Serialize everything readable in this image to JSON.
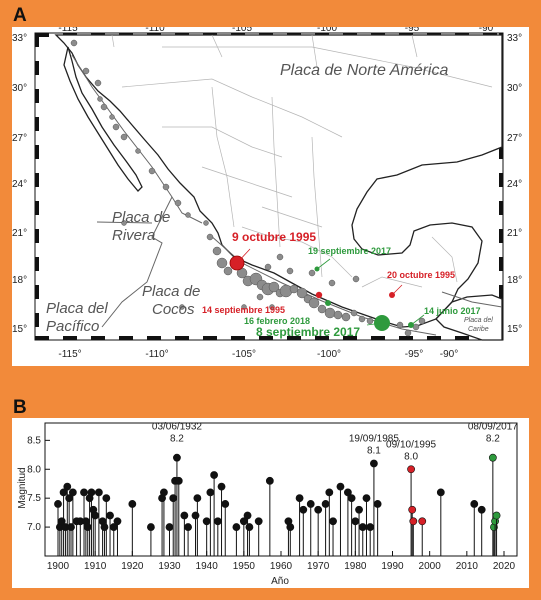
{
  "panel_a": {
    "letter": "A",
    "lon_ticks": [
      "-115°",
      "-110°",
      "-105°",
      "-100°",
      "-95°",
      "-90°"
    ],
    "lat_ticks": [
      "33°",
      "30°",
      "27°",
      "24°",
      "21°",
      "18°",
      "15°"
    ],
    "plates": {
      "north_america": "Placa de Norte América",
      "rivera_1": "Placa de",
      "rivera_2": "Rivera",
      "cocos_1": "Placa de",
      "cocos_2": "Cocos",
      "pacific_1": "Placa del",
      "pacific_2": "Pacífico",
      "caribbean_1": "Placa del",
      "caribbean_2": "Caribe"
    },
    "events": {
      "e1": "9 octubre 1995",
      "e2": "19 septiembre 2017",
      "e3": "20 octubre 1995",
      "e4": "14 septiembre 1995",
      "e5": "16 febrero 2018",
      "e6": "8 septiembre 2017",
      "e7": "14 junio 2017"
    },
    "colors": {
      "red": "#d62027",
      "green": "#2e9a3d",
      "grey": "#8c8c8c"
    }
  },
  "panel_b": {
    "letter": "B",
    "chart_data": {
      "type": "stem",
      "xlabel": "Año",
      "ylabel": "Magnitud",
      "xlim": [
        1900,
        2020
      ],
      "ylim": [
        6.5,
        8.8
      ],
      "xticks": [
        "1900",
        "1910",
        "1920",
        "1930",
        "1940",
        "1950",
        "1960",
        "1970",
        "1980",
        "1990",
        "2000",
        "2010",
        "2020"
      ],
      "yticks": [
        "7.0",
        "7.5",
        "8.0",
        "8.5"
      ],
      "annotations": [
        {
          "date": "03/06/1932",
          "mag_label": "8.2",
          "x": 1932,
          "y": 8.2
        },
        {
          "date": "19/09/1985",
          "mag_label": "8.1",
          "x": 1985,
          "y": 8.1
        },
        {
          "date": "09/10/1995",
          "mag_label": "8.0",
          "x": 1995,
          "y": 8.0
        },
        {
          "date": "08/09/2017",
          "mag_label": "8.2",
          "x": 2017,
          "y": 8.2
        }
      ],
      "series": [
        {
          "color": "black",
          "points": [
            [
              1900,
              7.4
            ],
            [
              1900.5,
              7.0
            ],
            [
              1901,
              7.1
            ],
            [
              1901.5,
              7.6
            ],
            [
              1902,
              7.0
            ],
            [
              1902.5,
              7.7
            ],
            [
              1903,
              7.5
            ],
            [
              1903.5,
              7.0
            ],
            [
              1904,
              7.6
            ],
            [
              1905,
              7.1
            ],
            [
              1906,
              7.1
            ],
            [
              1907,
              7.6
            ],
            [
              1907.5,
              7.1
            ],
            [
              1908,
              7.0
            ],
            [
              1908.5,
              7.5
            ],
            [
              1909,
              7.6
            ],
            [
              1909.5,
              7.3
            ],
            [
              1910,
              7.2
            ],
            [
              1911,
              7.6
            ],
            [
              1912,
              7.1
            ],
            [
              1912.5,
              7.0
            ],
            [
              1913,
              7.5
            ],
            [
              1914,
              7.2
            ],
            [
              1915,
              7.0
            ],
            [
              1916,
              7.1
            ],
            [
              1920,
              7.4
            ],
            [
              1925,
              7.0
            ],
            [
              1928,
              7.5
            ],
            [
              1928.5,
              7.6
            ],
            [
              1930,
              7.0
            ],
            [
              1931,
              7.5
            ],
            [
              1931.5,
              7.8
            ],
            [
              1932,
              8.2
            ],
            [
              1932.5,
              7.8
            ],
            [
              1934,
              7.2
            ],
            [
              1935,
              7.0
            ],
            [
              1937,
              7.2
            ],
            [
              1937.5,
              7.5
            ],
            [
              1940,
              7.1
            ],
            [
              1941,
              7.6
            ],
            [
              1942,
              7.9
            ],
            [
              1943,
              7.1
            ],
            [
              1944,
              7.7
            ],
            [
              1945,
              7.4
            ],
            [
              1948,
              7.0
            ],
            [
              1950,
              7.1
            ],
            [
              1951,
              7.2
            ],
            [
              1951.5,
              7.0
            ],
            [
              1954,
              7.1
            ],
            [
              1957,
              7.8
            ],
            [
              1962,
              7.1
            ],
            [
              1962.5,
              7.0
            ],
            [
              1965,
              7.5
            ],
            [
              1966,
              7.3
            ],
            [
              1968,
              7.4
            ],
            [
              1970,
              7.3
            ],
            [
              1972,
              7.4
            ],
            [
              1973,
              7.6
            ],
            [
              1974,
              7.1
            ],
            [
              1976,
              7.7
            ],
            [
              1978,
              7.6
            ],
            [
              1979,
              7.5
            ],
            [
              1980,
              7.1
            ],
            [
              1981,
              7.3
            ],
            [
              1982,
              7.0
            ],
            [
              1983,
              7.5
            ],
            [
              1984,
              7.0
            ],
            [
              1985,
              8.1
            ],
            [
              1986,
              7.4
            ],
            [
              2003,
              7.6
            ],
            [
              2012,
              7.4
            ],
            [
              2014,
              7.3
            ]
          ]
        },
        {
          "color": "red",
          "points": [
            [
              1995,
              8.0
            ],
            [
              1995.3,
              7.3
            ],
            [
              1995.6,
              7.1
            ],
            [
              1998,
              7.1
            ]
          ]
        },
        {
          "color": "green",
          "points": [
            [
              2017,
              8.2
            ],
            [
              2017.3,
              7.0
            ],
            [
              2017.6,
              7.1
            ],
            [
              2018,
              7.2
            ]
          ]
        }
      ]
    }
  }
}
